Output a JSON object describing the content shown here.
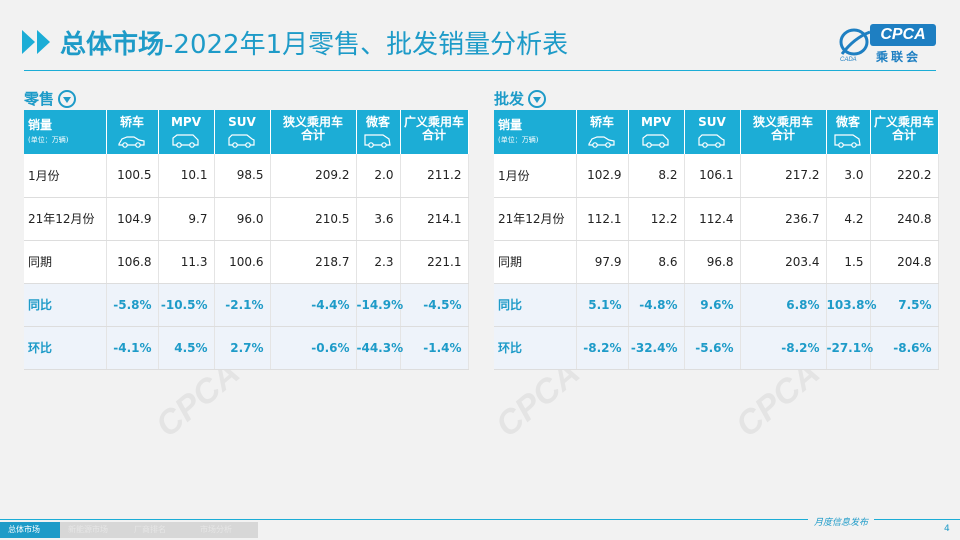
{
  "header": {
    "title_bold": "总体市场",
    "title_rest": "-2022年1月零售、批发销量分析表"
  },
  "logo": {
    "text": "CPCA",
    "cn": "乘联会"
  },
  "retail": {
    "label": "零售",
    "headers": [
      "轿车",
      "MPV",
      "SUV",
      "狭义乘用车\n合计",
      "微客",
      "广义乘用车\n合计"
    ],
    "first_header": "销量",
    "unit": "(单位：万辆)",
    "rows": [
      {
        "label": "1月份",
        "values": [
          "100.5",
          "10.1",
          "98.5",
          "209.2",
          "2.0",
          "211.2"
        ]
      },
      {
        "label": "21年12月份",
        "values": [
          "104.9",
          "9.7",
          "96.0",
          "210.5",
          "3.6",
          "214.1"
        ]
      },
      {
        "label": "同期",
        "values": [
          "106.8",
          "11.3",
          "100.6",
          "218.7",
          "2.3",
          "221.1"
        ]
      },
      {
        "label": "同比",
        "values": [
          "-5.8%",
          "-10.5%",
          "-2.1%",
          "-4.4%",
          "-14.9%",
          "-4.5%"
        ]
      },
      {
        "label": "环比",
        "values": [
          "-4.1%",
          "4.5%",
          "2.7%",
          "-0.6%",
          "-44.3%",
          "-1.4%"
        ]
      }
    ]
  },
  "wholesale": {
    "label": "批发",
    "headers": [
      "轿车",
      "MPV",
      "SUV",
      "狭义乘用车\n合计",
      "微客",
      "广义乘用车\n合计"
    ],
    "first_header": "销量",
    "unit": "(单位：万辆)",
    "rows": [
      {
        "label": "1月份",
        "values": [
          "102.9",
          "8.2",
          "106.1",
          "217.2",
          "3.0",
          "220.2"
        ]
      },
      {
        "label": "21年12月份",
        "values": [
          "112.1",
          "12.2",
          "112.4",
          "236.7",
          "4.2",
          "240.8"
        ]
      },
      {
        "label": "同期",
        "values": [
          "97.9",
          "8.6",
          "96.8",
          "203.4",
          "1.5",
          "204.8"
        ]
      },
      {
        "label": "同比",
        "values": [
          "5.1%",
          "-4.8%",
          "9.6%",
          "6.8%",
          "103.8%",
          "7.5%"
        ]
      },
      {
        "label": "环比",
        "values": [
          "-8.2%",
          "-32.4%",
          "-5.6%",
          "-8.2%",
          "-27.1%",
          "-8.6%"
        ]
      }
    ]
  },
  "footer": {
    "tabs": [
      "总体市场",
      "新能源市场",
      "厂商排名",
      "市场分析"
    ],
    "note": "月度信息发布",
    "page": "4"
  }
}
